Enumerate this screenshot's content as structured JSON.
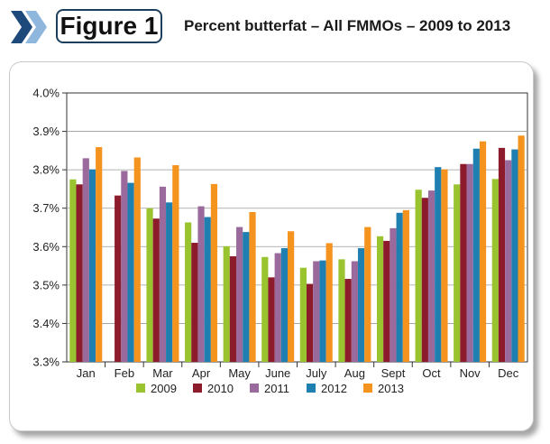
{
  "figure_label": "Figure 1",
  "title": "Percent butterfat – All FMMOs – 2009 to 2013",
  "colors": {
    "2009": "#9ac42f",
    "2010": "#8c1b2c",
    "2011": "#9a6a9d",
    "2012": "#1f7fb0",
    "2013": "#f4931e",
    "badge_border": "#1d3f5e",
    "chevron_dark": "#1d4a7a",
    "chevron_light": "#8fb6dc"
  },
  "chart_data": {
    "type": "bar",
    "title": "",
    "xlabel": "",
    "ylabel": "",
    "ylim": [
      3.3,
      4.0
    ],
    "yticks": [
      "3.3%",
      "3.4%",
      "3.5%",
      "3.6%",
      "3.7%",
      "3.8%",
      "3.9%",
      "4.0%"
    ],
    "ytick_values": [
      3.3,
      3.4,
      3.5,
      3.6,
      3.7,
      3.8,
      3.9,
      4.0
    ],
    "grid": true,
    "legend_position": "bottom",
    "categories": [
      "Jan",
      "Feb",
      "Mar",
      "Apr",
      "May",
      "June",
      "July",
      "Aug",
      "Sept",
      "Oct",
      "Nov",
      "Dec"
    ],
    "series": [
      {
        "name": "2009",
        "values": [
          3.775,
          null,
          3.7,
          3.663,
          3.601,
          3.573,
          3.545,
          3.567,
          3.627,
          3.748,
          3.762,
          3.776
        ]
      },
      {
        "name": "2010",
        "values": [
          3.762,
          3.733,
          3.673,
          3.61,
          3.575,
          3.52,
          3.503,
          3.516,
          3.615,
          3.727,
          3.815,
          3.857
        ]
      },
      {
        "name": "2011",
        "values": [
          3.83,
          3.797,
          3.756,
          3.705,
          3.651,
          3.583,
          3.562,
          3.562,
          3.648,
          3.746,
          3.815,
          3.825
        ]
      },
      {
        "name": "2012",
        "values": [
          3.801,
          3.766,
          3.715,
          3.677,
          3.638,
          3.596,
          3.564,
          3.596,
          3.688,
          3.807,
          3.855,
          3.853
        ]
      },
      {
        "name": "2013",
        "values": [
          3.859,
          3.832,
          3.812,
          3.763,
          3.69,
          3.64,
          3.609,
          3.651,
          3.695,
          3.801,
          3.874,
          3.889
        ]
      }
    ]
  }
}
